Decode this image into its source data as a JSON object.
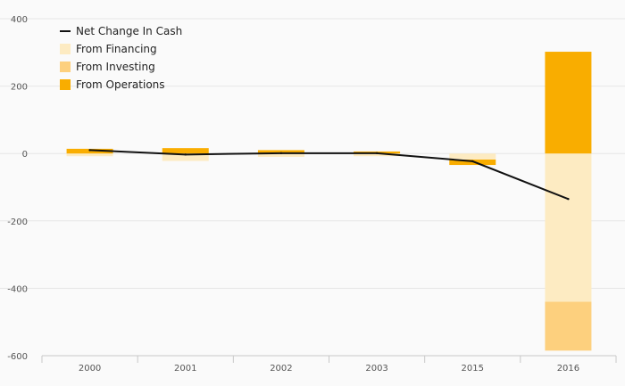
{
  "chart_data": {
    "type": "bar",
    "stacked": true,
    "categories": [
      "2000",
      "2001",
      "2002",
      "2003",
      "2015",
      "2016"
    ],
    "series": [
      {
        "name": "From Financing",
        "kind": "bar",
        "color": "#fdebc2",
        "values": [
          -8,
          -22,
          -10,
          -8,
          -18,
          -440
        ]
      },
      {
        "name": "From Investing",
        "kind": "bar",
        "color": "#fdd07e",
        "values": [
          0,
          0,
          0,
          0,
          0,
          -145
        ]
      },
      {
        "name": "From Operations",
        "kind": "bar",
        "color": "#f9ad00",
        "values": [
          14,
          16,
          10,
          6,
          -16,
          302
        ]
      },
      {
        "name": "Net Change In Cash",
        "kind": "line",
        "color": "#111111",
        "values": [
          10,
          -3,
          1,
          1,
          -23,
          -135
        ]
      }
    ],
    "legend": [
      "Net Change In Cash",
      "From Financing",
      "From Investing",
      "From Operations"
    ],
    "legend_position": "top-left",
    "ylim": [
      -600,
      400
    ],
    "yticks": [
      400,
      200,
      0,
      -200,
      -400,
      -600
    ],
    "grid": true,
    "title": "",
    "xlabel": "",
    "ylabel": ""
  }
}
